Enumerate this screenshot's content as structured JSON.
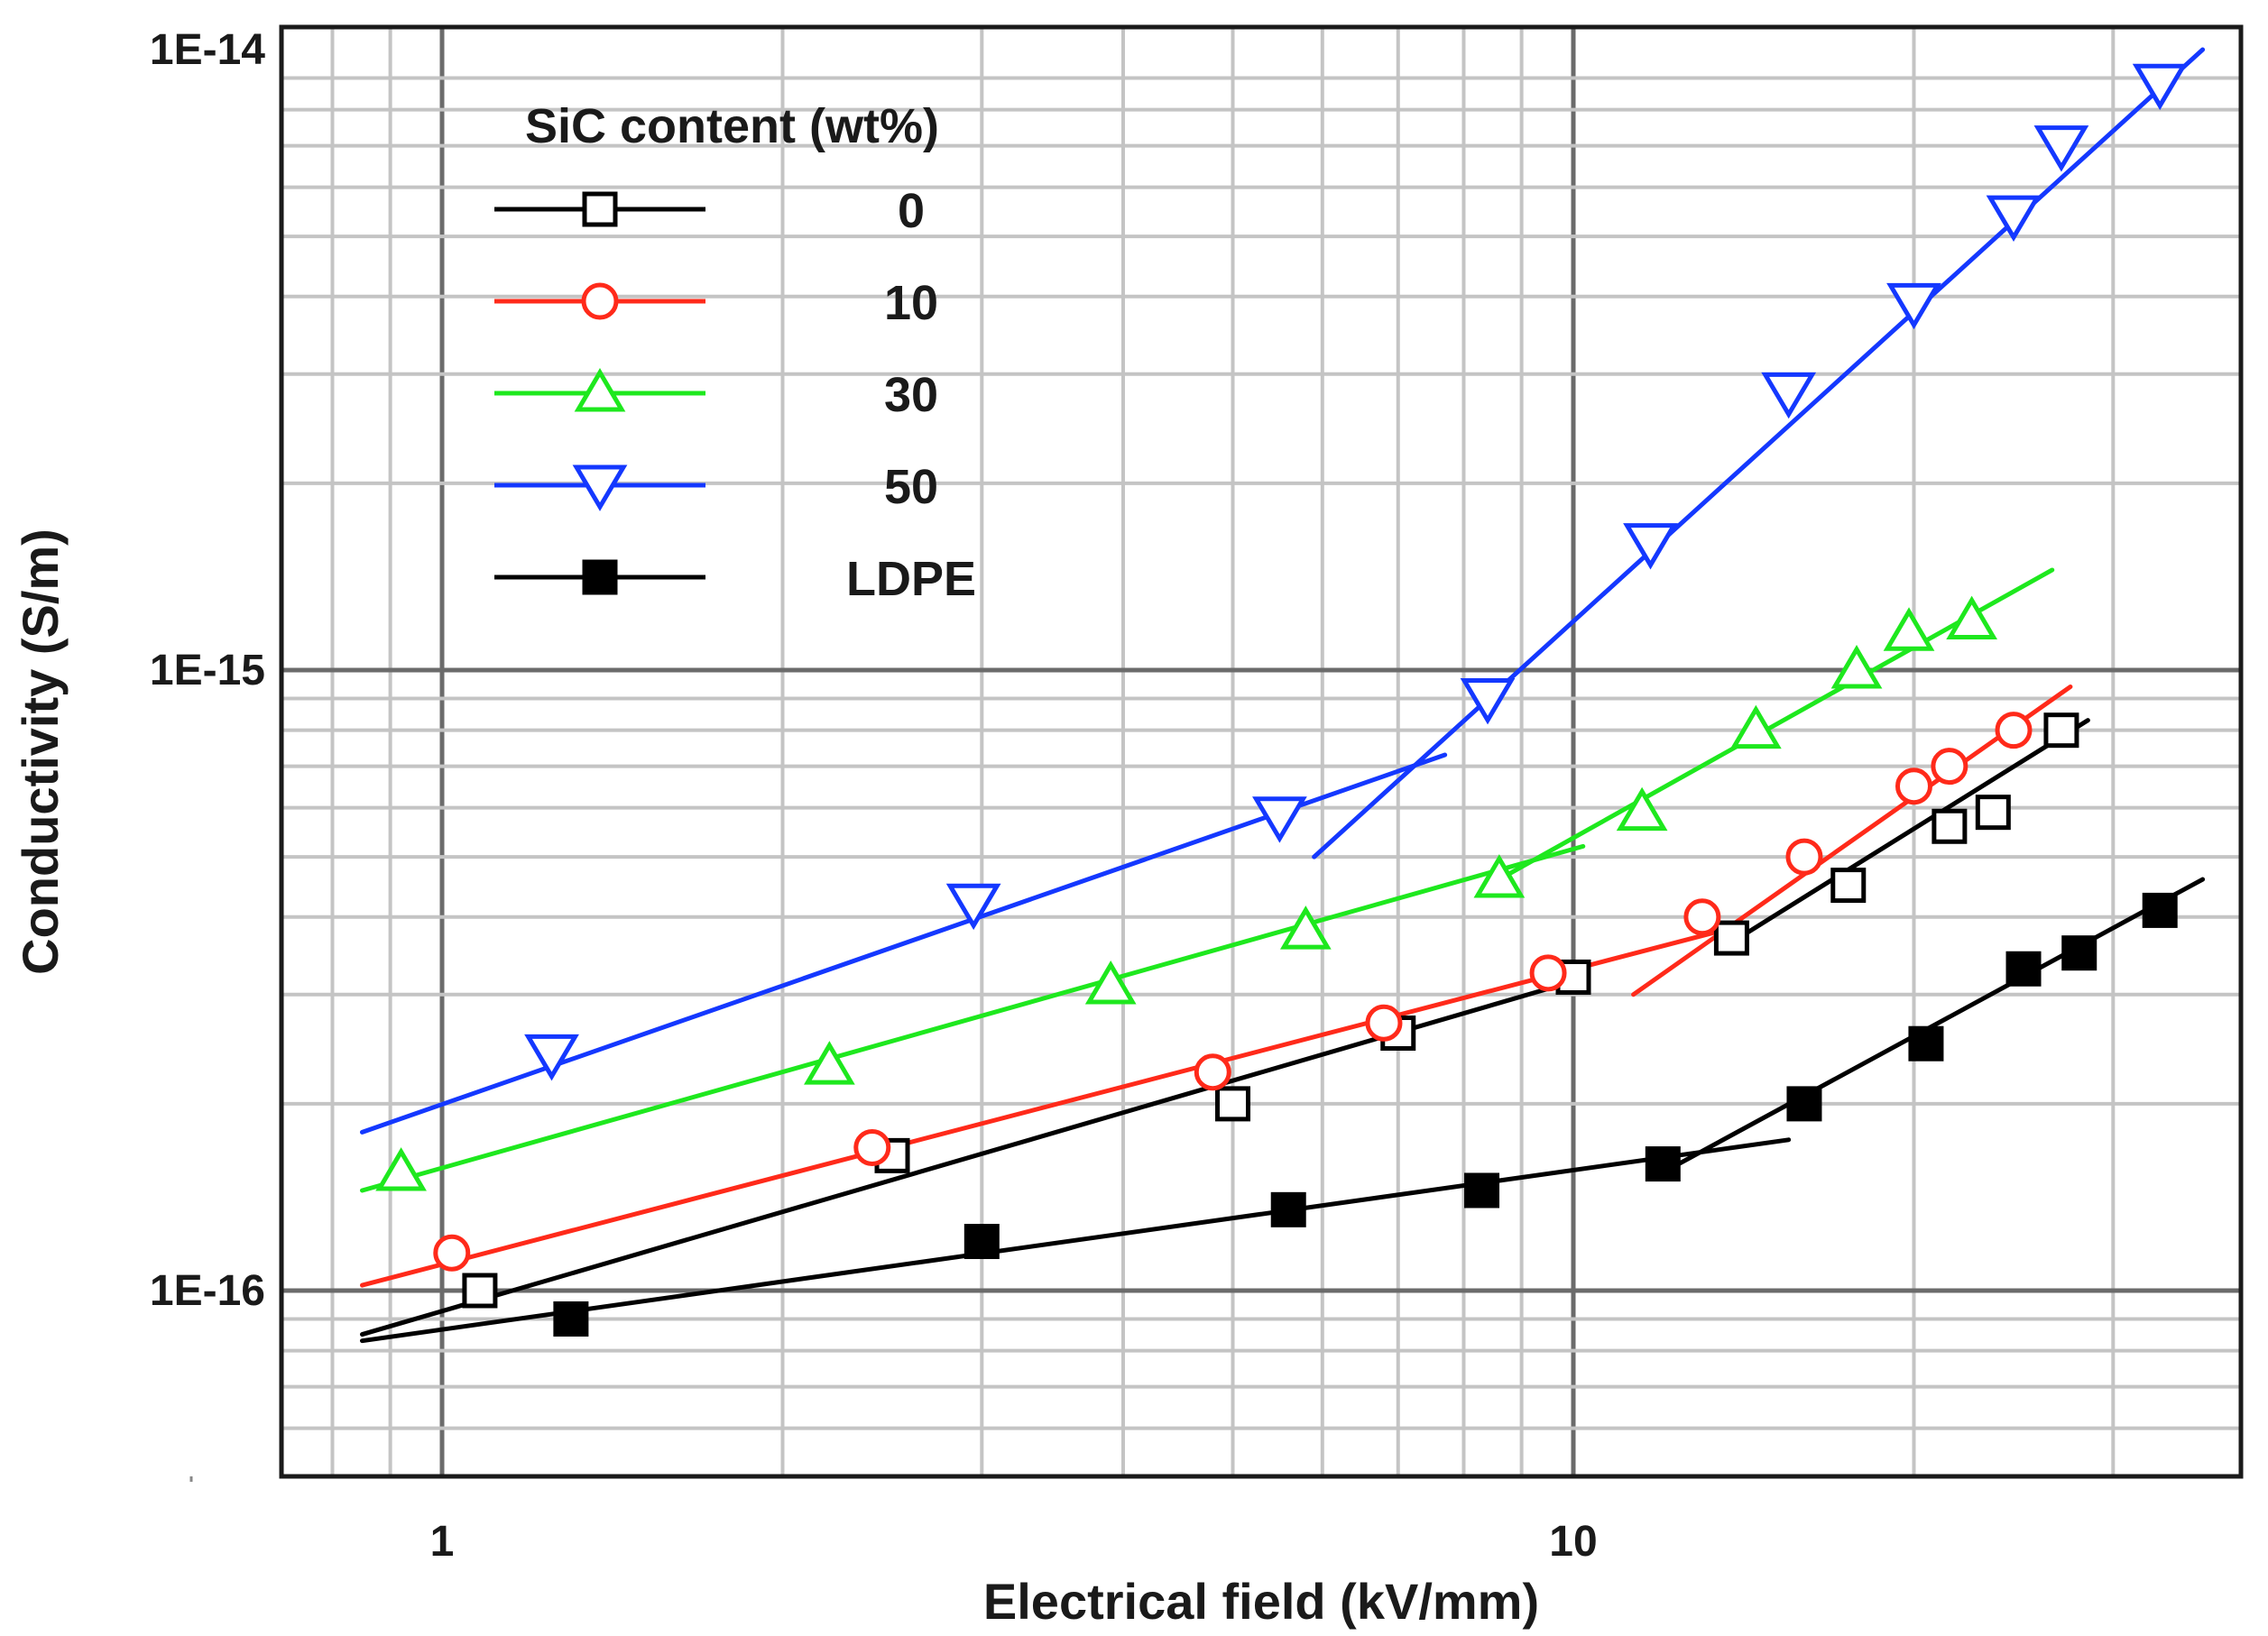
{
  "chart_data": {
    "type": "line",
    "title": "",
    "xlabel": "Electrical field (kV/mm)",
    "ylabel": "Conductivity (S/m)",
    "x_scale": "log",
    "y_scale": "log",
    "xlim": [
      0.75,
      40
    ],
    "ylim": [
      5e-17,
      1.2e-14
    ],
    "grid": true,
    "x_ticks": [
      {
        "value": 1,
        "label": "1"
      },
      {
        "value": 10,
        "label": "10"
      }
    ],
    "y_ticks": [
      {
        "value": 1e-16,
        "label": "1E-16"
      },
      {
        "value": 1e-15,
        "label": "1E-15"
      },
      {
        "value": 1e-14,
        "label": "1E-14"
      }
    ],
    "legend": {
      "title": "SiC content (wt%)",
      "placement": "top-left"
    },
    "series": [
      {
        "name": "0",
        "color": "#000000",
        "marker": "square-open",
        "points": [
          [
            1.08,
            1e-16
          ],
          [
            2.5,
            1.65e-16
          ],
          [
            5.0,
            2e-16
          ],
          [
            7.0,
            2.6e-16
          ],
          [
            10.0,
            3.2e-16
          ],
          [
            13.8,
            3.7e-16
          ],
          [
            17.5,
            4.5e-16
          ],
          [
            21.5,
            5.6e-16
          ],
          [
            23.5,
            5.9e-16
          ],
          [
            27.0,
            8e-16
          ]
        ],
        "fits": [
          [
            [
              0.85,
              8.5e-17
            ],
            [
              10.0,
              3.15e-16
            ]
          ],
          [
            [
              14.0,
              3.7e-16
            ],
            [
              28.5,
              8.3e-16
            ]
          ]
        ]
      },
      {
        "name": "10",
        "color": "#ff2a1a",
        "marker": "circle-open",
        "points": [
          [
            1.02,
            1.15e-16
          ],
          [
            2.4,
            1.7e-16
          ],
          [
            4.8,
            2.25e-16
          ],
          [
            6.8,
            2.7e-16
          ],
          [
            9.5,
            3.25e-16
          ],
          [
            13.0,
            4e-16
          ],
          [
            16.0,
            5e-16
          ],
          [
            20.0,
            6.5e-16
          ],
          [
            21.5,
            7e-16
          ],
          [
            24.5,
            8e-16
          ]
        ],
        "fits": [
          [
            [
              0.85,
              1.02e-16
            ],
            [
              13.5,
              3.8e-16
            ]
          ],
          [
            [
              11.3,
              3e-16
            ],
            [
              27.5,
              9.4e-16
            ]
          ]
        ]
      },
      {
        "name": "30",
        "color": "#1ee81e",
        "marker": "triangle-up-open",
        "points": [
          [
            0.92,
            1.55e-16
          ],
          [
            2.2,
            2.3e-16
          ],
          [
            3.9,
            3.1e-16
          ],
          [
            5.8,
            3.8e-16
          ],
          [
            8.6,
            4.6e-16
          ],
          [
            11.5,
            5.9e-16
          ],
          [
            14.5,
            8e-16
          ],
          [
            17.8,
            1e-15
          ],
          [
            19.8,
            1.15e-15
          ],
          [
            22.5,
            1.2e-15
          ]
        ],
        "fits": [
          [
            [
              0.85,
              1.45e-16
            ],
            [
              10.2,
              5.2e-16
            ]
          ],
          [
            [
              8.6,
              4.6e-16
            ],
            [
              26.5,
              1.45e-15
            ]
          ]
        ]
      },
      {
        "name": "50",
        "color": "#1438ff",
        "marker": "triangle-down-open",
        "points": [
          [
            1.25,
            2.4e-16
          ],
          [
            2.95,
            4.2e-16
          ],
          [
            5.5,
            5.8e-16
          ],
          [
            8.4,
            9e-16
          ],
          [
            11.7,
            1.6e-15
          ],
          [
            15.5,
            2.8e-15
          ],
          [
            20.0,
            3.9e-15
          ],
          [
            24.5,
            5.4e-15
          ],
          [
            27.0,
            7e-15
          ],
          [
            33.0,
            8.8e-15
          ]
        ],
        "fits": [
          [
            [
              0.85,
              1.8e-16
            ],
            [
              7.7,
              7.3e-16
            ]
          ],
          [
            [
              5.9,
              5e-16
            ],
            [
              36.0,
              1e-14
            ]
          ]
        ]
      },
      {
        "name": "LDPE",
        "color": "#000000",
        "marker": "square-filled",
        "points": [
          [
            1.3,
            9e-17
          ],
          [
            3.0,
            1.2e-16
          ],
          [
            5.6,
            1.35e-16
          ],
          [
            8.3,
            1.45e-16
          ],
          [
            12.0,
            1.6e-16
          ],
          [
            16.0,
            2e-16
          ],
          [
            20.5,
            2.5e-16
          ],
          [
            25.0,
            3.3e-16
          ],
          [
            28.0,
            3.5e-16
          ],
          [
            33.0,
            4.1e-16
          ]
        ],
        "fits": [
          [
            [
              0.85,
              8.3e-17
            ],
            [
              15.5,
              1.75e-16
            ]
          ],
          [
            [
              12.0,
              1.55e-16
            ],
            [
              36.0,
              4.6e-16
            ]
          ]
        ]
      }
    ]
  }
}
